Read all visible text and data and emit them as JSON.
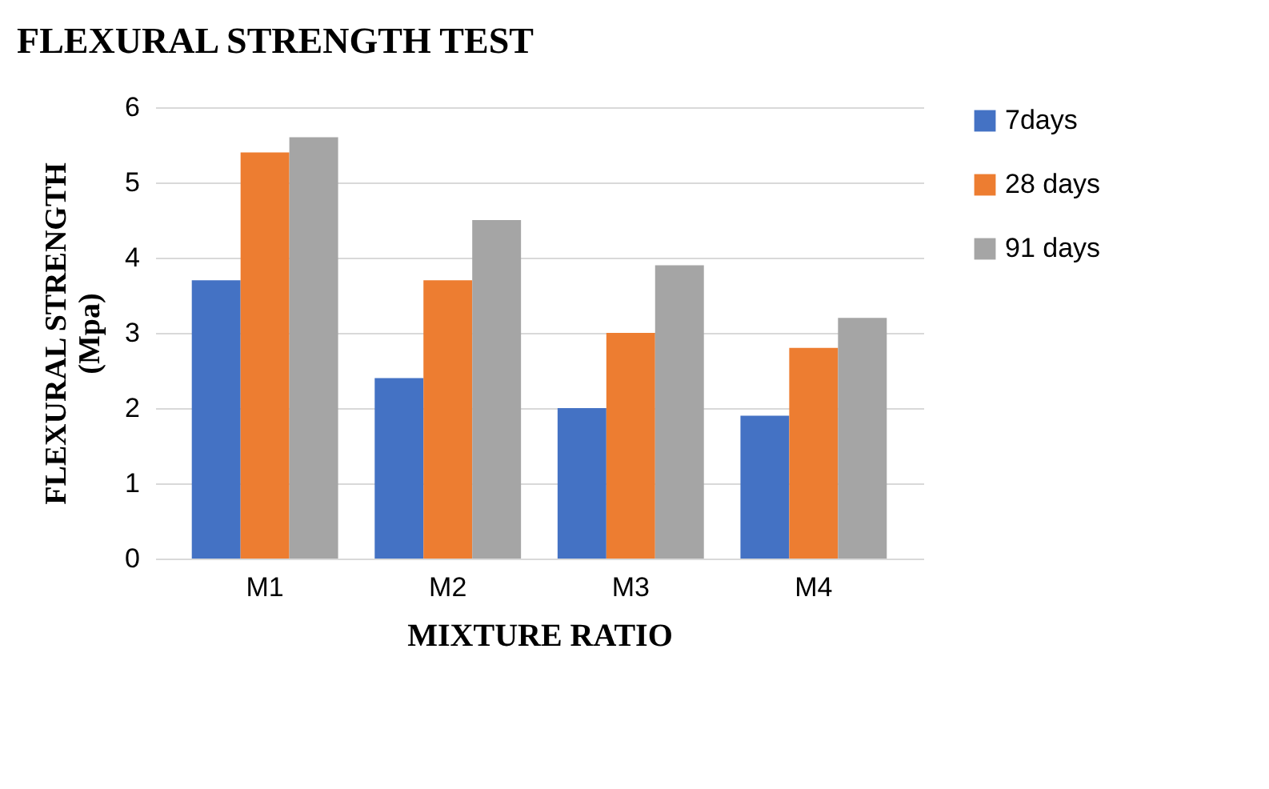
{
  "chart_data": {
    "type": "bar",
    "title": "FLEXURAL STRENGTH  TEST",
    "xlabel": "MIXTURE  RATIO",
    "ylabel": "FLEXURAL  STRENGTH\n(Mpa)",
    "categories": [
      "M1",
      "M2",
      "M3",
      "M4"
    ],
    "series": [
      {
        "name": "7days",
        "color": "#4472c4",
        "values": [
          3.7,
          2.4,
          2.0,
          1.9
        ]
      },
      {
        "name": "28 days",
        "color": "#ed7d31",
        "values": [
          5.4,
          3.7,
          3.0,
          2.8
        ]
      },
      {
        "name": "91 days",
        "color": "#a5a5a5",
        "values": [
          5.6,
          4.5,
          3.9,
          3.2
        ]
      }
    ],
    "ylim": [
      0,
      6
    ],
    "yticks": [
      0,
      1,
      2,
      3,
      4,
      5,
      6
    ],
    "grid": "y",
    "legend": "right"
  }
}
